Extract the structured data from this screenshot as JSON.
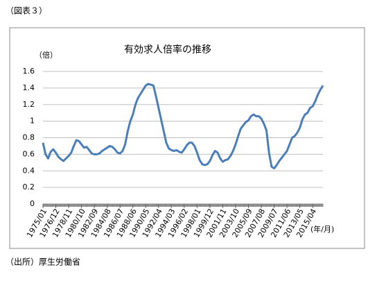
{
  "page_title": "（図表３）",
  "source": "（出所）厚生労働省",
  "chart_data": {
    "type": "line",
    "title": "有効求人倍率の推移",
    "y_label": "（倍）",
    "x_label": "(年/月)",
    "categories": [
      "1975/01",
      null,
      null,
      null,
      null,
      "1976/12",
      null,
      null,
      null,
      null,
      "1978/11",
      null,
      null,
      null,
      null,
      "1980/10",
      null,
      null,
      null,
      null,
      "1982/09",
      null,
      null,
      null,
      null,
      "1984/08",
      null,
      null,
      null,
      null,
      "1986/07",
      null,
      null,
      null,
      null,
      "1988/06",
      null,
      null,
      null,
      null,
      "1990/05",
      null,
      null,
      null,
      null,
      "1992/04",
      null,
      null,
      null,
      null,
      "1994/03",
      null,
      null,
      null,
      null,
      "1996/02",
      null,
      null,
      null,
      null,
      "1998/01",
      null,
      null,
      null,
      null,
      "1999/12",
      null,
      null,
      null,
      null,
      "2001/11",
      null,
      null,
      null,
      null,
      "2003/10",
      null,
      null,
      null,
      null,
      "2005/09",
      null,
      null,
      null,
      null,
      "2007/08",
      null,
      null,
      null,
      null,
      "2009/07",
      null,
      null,
      null,
      null,
      "2011/06",
      null,
      null,
      null,
      null,
      "2013/05",
      null,
      null,
      null,
      null,
      "2015/04",
      null,
      null,
      null,
      null
    ],
    "series": [
      {
        "color": "#4a7ebb",
        "values": [
          0.74,
          0.6,
          0.55,
          0.63,
          0.66,
          0.62,
          0.57,
          0.54,
          0.52,
          0.55,
          0.58,
          0.62,
          0.7,
          0.77,
          0.76,
          0.72,
          0.68,
          0.69,
          0.65,
          0.61,
          0.6,
          0.6,
          0.61,
          0.64,
          0.66,
          0.68,
          0.7,
          0.69,
          0.66,
          0.62,
          0.61,
          0.64,
          0.72,
          0.88,
          1.0,
          1.08,
          1.2,
          1.28,
          1.33,
          1.38,
          1.43,
          1.45,
          1.44,
          1.43,
          1.3,
          1.16,
          1.02,
          0.88,
          0.74,
          0.67,
          0.65,
          0.64,
          0.65,
          0.63,
          0.62,
          0.66,
          0.71,
          0.74,
          0.74,
          0.7,
          0.62,
          0.53,
          0.48,
          0.47,
          0.48,
          0.52,
          0.59,
          0.64,
          0.62,
          0.55,
          0.51,
          0.53,
          0.54,
          0.58,
          0.64,
          0.72,
          0.82,
          0.91,
          0.95,
          0.99,
          1.01,
          1.06,
          1.08,
          1.06,
          1.06,
          1.03,
          0.97,
          0.89,
          0.62,
          0.45,
          0.43,
          0.47,
          0.52,
          0.56,
          0.6,
          0.64,
          0.72,
          0.8,
          0.82,
          0.86,
          0.92,
          1.02,
          1.08,
          1.1,
          1.16,
          1.18,
          1.24,
          1.32,
          1.38,
          1.43
        ]
      }
    ],
    "ylim": [
      0,
      1.6
    ],
    "yticks": [
      0,
      0.2,
      0.4,
      0.6,
      0.8,
      1,
      1.2,
      1.4,
      1.6
    ],
    "grid": true
  }
}
